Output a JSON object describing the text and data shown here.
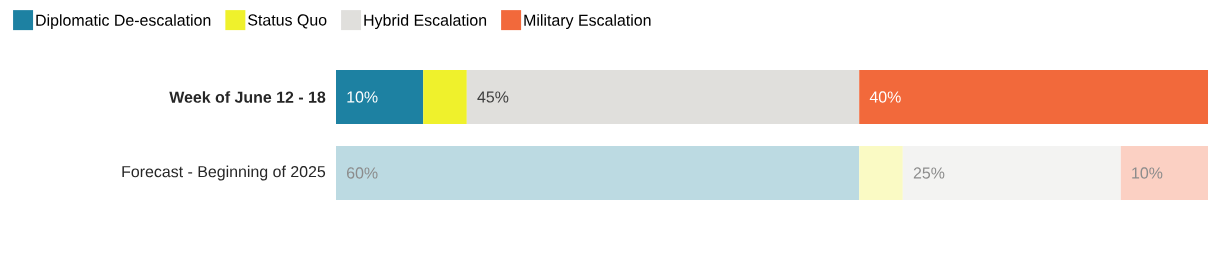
{
  "chart_data": {
    "type": "bar",
    "orientation": "horizontal",
    "stacked": true,
    "categories": [
      "Week of June 12 - 18",
      "Forecast - Beginning of 2025"
    ],
    "xlim": [
      0,
      100
    ],
    "tick_labels": "y",
    "legend": "top left",
    "series": [
      {
        "name": "Diplomatic De-escalation",
        "color": "#1d81a2",
        "colors": [
          "#1d81a2",
          "#bcdae2"
        ],
        "values": [
          10,
          60
        ],
        "value_labels": [
          "10%",
          "60%"
        ]
      },
      {
        "name": "Status Quo",
        "color": "#eff12c",
        "colors": [
          "#eff12c",
          "#fafac4"
        ],
        "values": [
          5,
          5
        ],
        "value_labels": [
          null,
          null
        ]
      },
      {
        "name": "Hybrid Escalation",
        "color": "#e0dfdc",
        "colors": [
          "#e0dfdc",
          "#f3f3f2"
        ],
        "values": [
          45,
          25
        ],
        "value_labels": [
          "45%",
          "25%"
        ]
      },
      {
        "name": "Military Escalation",
        "color": "#f2693b",
        "colors": [
          "#f2693b",
          "#fbd0c3"
        ],
        "values": [
          40,
          10
        ],
        "value_labels": [
          "40%",
          "10%"
        ]
      }
    ]
  }
}
